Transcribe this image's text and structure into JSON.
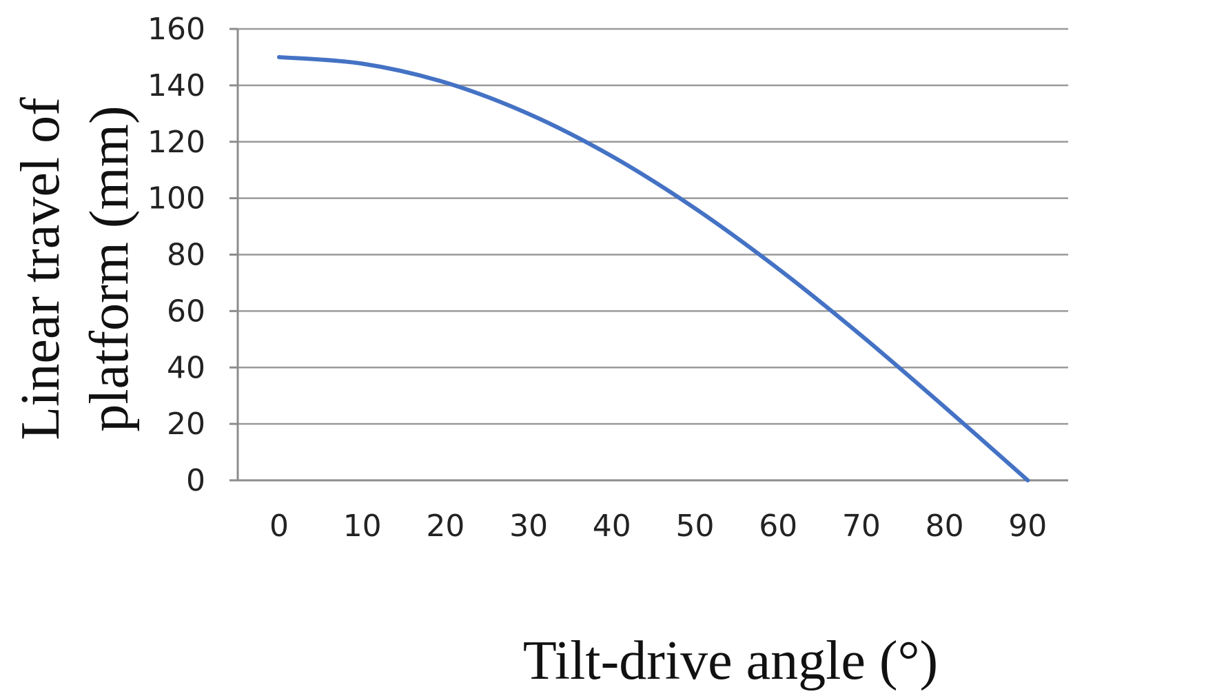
{
  "chart_data": {
    "type": "line",
    "title": "",
    "xlabel": "Tilt-drive angle (°)",
    "ylabel_lines": [
      "Linear travel of",
      "platform (mm)"
    ],
    "x": [
      0,
      10,
      20,
      30,
      40,
      50,
      60,
      70,
      80,
      90
    ],
    "series": [
      {
        "values": [
          150,
          147.7,
          141,
          129.9,
          114.9,
          96.4,
          75,
          51.3,
          26,
          0
        ],
        "color": "#4472C4"
      }
    ],
    "xticks": [
      "0",
      "10",
      "20",
      "30",
      "40",
      "50",
      "60",
      "70",
      "80",
      "90"
    ],
    "yticks": [
      "0",
      "20",
      "40",
      "60",
      "80",
      "100",
      "120",
      "140",
      "160"
    ],
    "ylim": [
      0,
      160
    ],
    "grid": true,
    "gridlines": "horizontal",
    "legend": "none"
  }
}
